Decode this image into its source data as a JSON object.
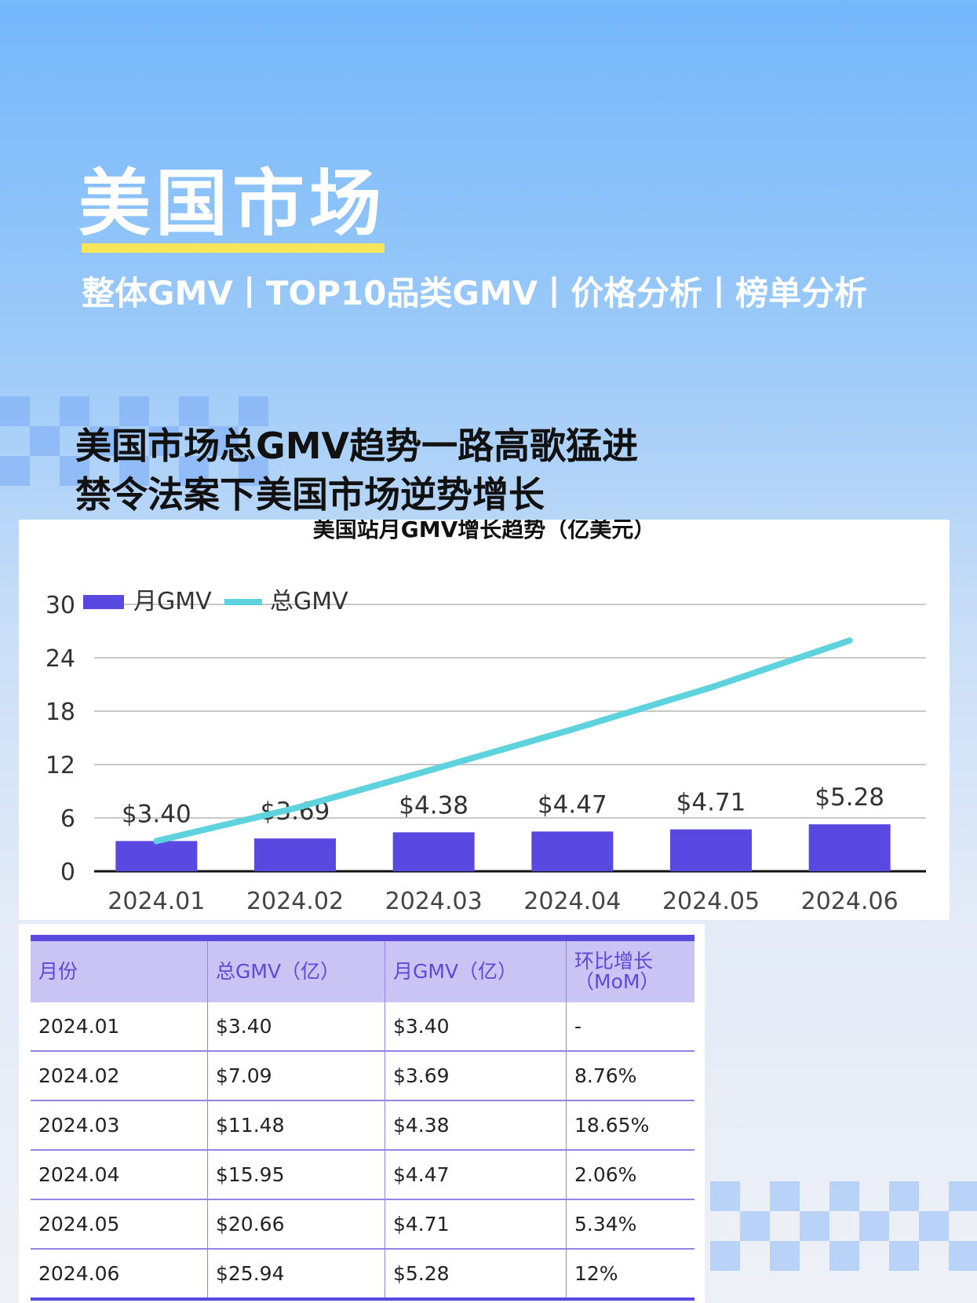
{
  "hero": {
    "title": "美国市场",
    "subtitle": "整体GMV丨TOP10品类GMV丨价格分析丨榜单分析"
  },
  "headline": {
    "line1": "美国市场总GMV趋势一路高歌猛进",
    "line2": "禁令法案下美国市场逆势增长"
  },
  "colors": {
    "bar": "#5a49e0",
    "line": "#5fd3dd",
    "accent_yellow": "#f7e55a",
    "table_header": "#c9c4f4"
  },
  "chart_data": {
    "type": "bar",
    "title": "美国站月GMV增长趋势（亿美元）",
    "categories": [
      "2024.01",
      "2024.02",
      "2024.03",
      "2024.04",
      "2024.05",
      "2024.06"
    ],
    "series": [
      {
        "name": "月GMV",
        "type": "bar",
        "values": [
          3.4,
          3.69,
          4.38,
          4.47,
          4.71,
          5.28
        ],
        "labels": [
          "$3.40",
          "$3.69",
          "$4.38",
          "$4.47",
          "$4.71",
          "$5.28"
        ]
      },
      {
        "name": "总GMV",
        "type": "line",
        "values": [
          3.4,
          7.09,
          11.48,
          15.95,
          20.66,
          25.94
        ]
      }
    ],
    "ylim": [
      0,
      30
    ],
    "yticks": [
      "0",
      "6",
      "12",
      "18",
      "24",
      "30"
    ],
    "grid": true,
    "legend": "top-left"
  },
  "table": {
    "headers": [
      "月份",
      "总GMV（亿）",
      "月GMV（亿）",
      "环比增长\n（MoM）"
    ],
    "rows": [
      [
        "2024.01",
        "$3.40",
        "$3.40",
        "-"
      ],
      [
        "2024.02",
        "$7.09",
        "$3.69",
        "8.76%"
      ],
      [
        "2024.03",
        "$11.48",
        "$4.38",
        "18.65%"
      ],
      [
        "2024.04",
        "$15.95",
        "$4.47",
        "2.06%"
      ],
      [
        "2024.05",
        "$20.66",
        "$4.71",
        "5.34%"
      ],
      [
        "2024.06",
        "$25.94",
        "$5.28",
        "12%"
      ]
    ]
  }
}
